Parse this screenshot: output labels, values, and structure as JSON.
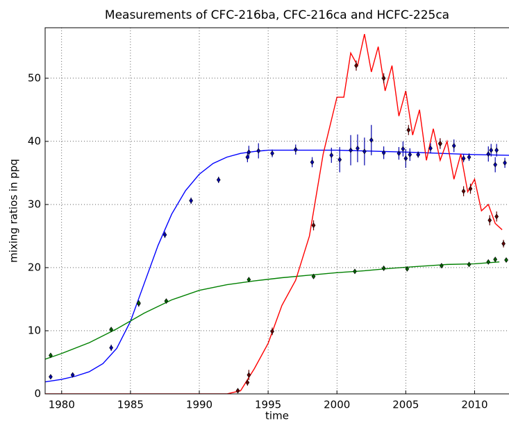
{
  "chart_data": {
    "type": "line",
    "title": "Measurements of CFC-216ba, CFC-216ca and HCFC-225ca",
    "xlabel": "time",
    "ylabel": "mixing ratios in ppq",
    "xlim": [
      1978.8,
      2012.5
    ],
    "ylim": [
      0,
      58
    ],
    "xticks": [
      1980,
      1985,
      1990,
      1995,
      2000,
      2005,
      2010
    ],
    "yticks": [
      0,
      10,
      20,
      30,
      40,
      50
    ],
    "grid": true,
    "series": [
      {
        "type": "line",
        "color": "#0000ff",
        "x": [
          1978.8,
          1980,
          1981,
          1982,
          1983,
          1984,
          1985,
          1986,
          1987,
          1988,
          1989,
          1990,
          1991,
          1992,
          1993,
          1994,
          1995,
          2000,
          2005,
          2010,
          2012.5
        ],
        "values": [
          1.9,
          2.3,
          2.8,
          3.5,
          4.8,
          7.2,
          11.5,
          17.5,
          23.5,
          28.5,
          32.2,
          34.8,
          36.5,
          37.5,
          38.1,
          38.4,
          38.6,
          38.6,
          38.3,
          37.9,
          37.8
        ]
      },
      {
        "type": "line",
        "color": "#008000",
        "x": [
          1978.8,
          1980,
          1982,
          1984,
          1986,
          1988,
          1990,
          1992,
          1994,
          1996,
          1998,
          2000,
          2002,
          2004,
          2006,
          2008,
          2010,
          2011.8
        ],
        "values": [
          5.5,
          6.4,
          8.1,
          10.3,
          12.8,
          14.9,
          16.4,
          17.3,
          17.9,
          18.4,
          18.8,
          19.2,
          19.5,
          19.9,
          20.2,
          20.5,
          20.6,
          20.9
        ]
      },
      {
        "type": "line",
        "color": "#ff0000",
        "x": [
          1978.8,
          1992,
          1993,
          1994,
          1995,
          1996,
          1997,
          1998,
          1999,
          2000,
          2000.5,
          2001,
          2001.5,
          2002,
          2002.5,
          2003,
          2003.5,
          2004,
          2004.5,
          2005,
          2005.5,
          2006,
          2006.5,
          2007,
          2007.5,
          2008,
          2008.5,
          2009,
          2009.5,
          2010,
          2010.5,
          2011,
          2011.5,
          2012
        ],
        "values": [
          0,
          0,
          0.5,
          4,
          8,
          14,
          18,
          25,
          38,
          47,
          47,
          54,
          52,
          57,
          51,
          55,
          48,
          52,
          44,
          48,
          41,
          45,
          37,
          42,
          37,
          40,
          34,
          38,
          32,
          34,
          29,
          30,
          27,
          26
        ]
      },
      {
        "type": "scatter",
        "color": "#0000aa",
        "x": [
          1979.2,
          1980.8,
          1983.6,
          1985.6,
          1987.5,
          1989.4,
          1991.4,
          1993.5,
          1993.6,
          1994.3,
          1995.3,
          1997,
          1998.2,
          1999.6,
          2000.2,
          2001,
          2001.5,
          2002,
          2002.5,
          2003.4,
          2004.5,
          2004.8,
          2005,
          2005.3,
          2005.9,
          2006.8,
          2007.5,
          2008.5,
          2009.2,
          2009.6,
          2011,
          2011.2,
          2011.5,
          2011.6,
          2012.2
        ],
        "values": [
          2.7,
          3.0,
          7.3,
          14.3,
          25.2,
          30.6,
          33.9,
          37.5,
          38.3,
          38.5,
          38.1,
          38.7,
          36.7,
          37.8,
          37.1,
          38.6,
          38.9,
          38.4,
          40.2,
          38.2,
          38.1,
          38.8,
          37.3,
          37.9,
          37.9,
          38.9,
          39.6,
          39.3,
          37.3,
          37.5,
          38.0,
          38.6,
          36.3,
          38.6,
          36.6
        ],
        "errors": [
          0.3,
          0.3,
          0.5,
          0.5,
          0.5,
          0.5,
          0.5,
          0.8,
          1.0,
          1.2,
          0.6,
          0.8,
          0.8,
          1.2,
          2.0,
          2.4,
          2.2,
          2.2,
          2.4,
          1.0,
          1.0,
          1.2,
          1.5,
          1.0,
          0.5,
          0.8,
          0.8,
          1.0,
          0.6,
          0.6,
          1.2,
          1.0,
          1.2,
          1.0,
          0.8
        ]
      },
      {
        "type": "scatter",
        "color": "#006000",
        "x": [
          1979.2,
          1983.6,
          1985.6,
          1987.6,
          1993.6,
          1998.3,
          2001.3,
          2003.4,
          2005.1,
          2007.6,
          2009.6,
          2011,
          2011.5,
          2012.3
        ],
        "values": [
          6.1,
          10.2,
          14.4,
          14.7,
          18.1,
          18.6,
          19.4,
          19.9,
          19.8,
          20.3,
          20.5,
          20.9,
          21.3,
          21.2
        ],
        "errors": [
          0.3,
          0.3,
          0.3,
          0.3,
          0.3,
          0.3,
          0.3,
          0.3,
          0.3,
          0.3,
          0.3,
          0.3,
          0.3,
          0.3
        ]
      },
      {
        "type": "scatter",
        "color": "#600000",
        "x": [
          1992.8,
          1993.5,
          1993.6,
          1995.3,
          1998.3,
          2001.4,
          2003.4,
          2005.2,
          2007.5,
          2009.2,
          2009.7,
          2011.1,
          2011.6,
          2012.1
        ],
        "values": [
          0.5,
          1.8,
          3.0,
          9.9,
          26.7,
          52.0,
          50.0,
          41.8,
          39.7,
          32.1,
          32.5,
          27.5,
          28.1,
          23.8
        ],
        "errors": [
          0.3,
          0.5,
          0.8,
          0.6,
          0.8,
          0.8,
          0.8,
          0.8,
          0.8,
          0.8,
          0.8,
          0.8,
          0.8,
          0.6
        ]
      }
    ]
  }
}
